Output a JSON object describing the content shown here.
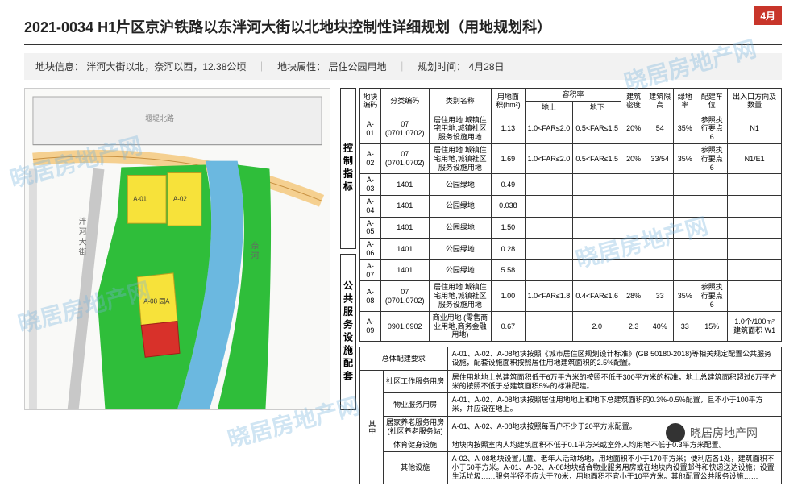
{
  "badge": "4月",
  "title": "2021-0034 H1片区京沪铁路以东泮河大街以北地块控制性详细规划（用地规划科）",
  "info": {
    "label1": "地块信息：",
    "value1": "泮河大街以北，奈河以西，12.38公顷",
    "label2": "地块属性：",
    "value2": "居住公园用地",
    "label3": "规划时间：",
    "value3": "4月28日"
  },
  "map": {
    "colors": {
      "green": "#2fbe3a",
      "yellow": "#f7e23a",
      "red": "#d8312a",
      "blue": "#6bb8e0",
      "road": "#f5d090",
      "gray": "#c8c8c8",
      "bg": "#f9f9f7"
    },
    "labels": {
      "a01": "A-01",
      "a02": "A-02",
      "a08": "A-08 园A",
      "river_l": "泮 河 大 街",
      "river_r": "奈 河",
      "road_top": "堰堤北路"
    }
  },
  "vlabel1": "控制指标",
  "vlabel2": "公共服务设施配套",
  "table1": {
    "headers": [
      "地块编码",
      "分类编码",
      "类别名称",
      "用地面积(hm²)",
      "地上",
      "地下",
      "建筑密度",
      "建筑限高",
      "绿地率",
      "配建车位",
      "出入口方向及数量"
    ],
    "far_header": "容积率",
    "rows": [
      [
        "A-01",
        "07 (0701,0702)",
        "居住用地 城镇住宅用地,城镇社区服务设施用地",
        "1.13",
        "1.0<FAR≤2.0",
        "0.5<FAR≤1.5",
        "20%",
        "54",
        "35%",
        "参照执行要点6",
        "N1"
      ],
      [
        "A-02",
        "07 (0701,0702)",
        "居住用地 城镇住宅用地,城镇社区服务设施用地",
        "1.69",
        "1.0<FAR≤2.0",
        "0.5<FAR≤1.5",
        "20%",
        "33/54",
        "35%",
        "参照执行要点6",
        "N1/E1"
      ],
      [
        "A-03",
        "1401",
        "公园绿地",
        "0.49",
        "",
        "",
        "",
        "",
        "",
        "",
        ""
      ],
      [
        "A-04",
        "1401",
        "公园绿地",
        "0.038",
        "",
        "",
        "",
        "",
        "",
        "",
        ""
      ],
      [
        "A-05",
        "1401",
        "公园绿地",
        "1.50",
        "",
        "",
        "",
        "",
        "",
        "",
        ""
      ],
      [
        "A-06",
        "1401",
        "公园绿地",
        "0.28",
        "",
        "",
        "",
        "",
        "",
        "",
        ""
      ],
      [
        "A-07",
        "1401",
        "公园绿地",
        "5.58",
        "",
        "",
        "",
        "",
        "",
        "",
        ""
      ],
      [
        "A-08",
        "07 (0701,0702)",
        "居住用地 城镇住宅用地,城镇社区服务设施用地",
        "1.00",
        "1.0<FAR≤1.8",
        "0.4<FAR≤1.6",
        "28%",
        "33",
        "35%",
        "参照执行要点6",
        ""
      ],
      [
        "A-09",
        "0901,0902",
        "商业用地 (零售商业用地,商务金融用地)",
        "0.67",
        "",
        "2.0",
        "2.3",
        "40%",
        "33",
        "15%",
        "1.0个/100m² 建筑面积  W1"
      ]
    ]
  },
  "table2": {
    "head": "总体配建要求",
    "head_text": "A-01、A-02、A-08地块按照《城市居住区规划设计标准》(GB 50180-2018)等相关规定配置公共服务设施，配套设施面积按照居住用地建筑面积的2.5%配置。",
    "side": "其中",
    "rows": [
      [
        "社区工作服务用房",
        "居住用地地上总建筑面积低于6万平方米的按照不低于300平方米的标准，地上总建筑面积超过6万平方米的按照不低于总建筑面积5‰的标准配建。"
      ],
      [
        "物业服务用房",
        "A-01、A-02、A-08地块按照居住用地地上和地下总建筑面积的0.3%-0.5%配置，且不小于100平方米，并应设在地上。"
      ],
      [
        "居家养老服务用房(社区养老服务站)",
        "A-01、A-02、A-08地块按照每百户不少于20平方米配置。"
      ],
      [
        "体育健身设施",
        "地块内按照室内人均建筑面积不低于0.1平方米或室外人均用地不低于0.3平方米配置。"
      ],
      [
        "其他设施",
        "A-02、A-08地块设置儿童、老年人活动场地，用地面积不小于170平方米；便利店各1处，建筑面积不小于50平方米。A-01、A-02、A-08地块结合物业服务用房或在地块内设置邮件和快递送达设施；设置生活垃圾……服务半径不应大于70米，用地面积不宜小于10平方米。其他配置公共服务设施……"
      ]
    ]
  },
  "watermark": "晓居房地产网",
  "footer": "晓居房地产网"
}
